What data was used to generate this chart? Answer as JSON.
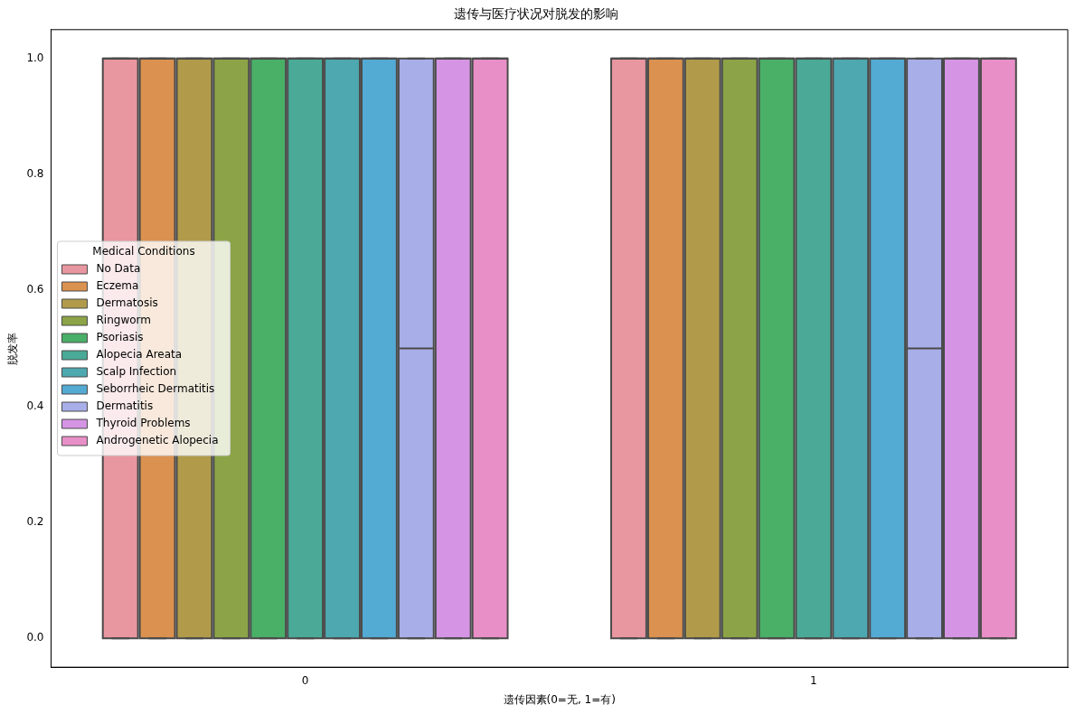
{
  "chart_data": {
    "type": "box",
    "title": "遗传与医疗状况对脱发的影响",
    "xlabel": "遗传因素(0=无, 1=有)",
    "ylabel": "脱发率",
    "legend_title": "Medical Conditions",
    "legend": "center left",
    "categories": [
      "0",
      "1"
    ],
    "ylim": [
      -0.05,
      1.05
    ],
    "yticks": [
      {
        "value": 0,
        "label": "0.0"
      },
      0.2,
      0.4,
      0.6,
      0.8,
      {
        "value": 1,
        "label": "1.0"
      }
    ],
    "grid": false,
    "series": [
      {
        "name": "No Data",
        "color": "#e8969f",
        "boxes": [
          {
            "low": 0,
            "q1": 0,
            "median": 1,
            "q3": 1,
            "high": 1
          },
          {
            "low": 0,
            "q1": 0,
            "median": 1,
            "q3": 1,
            "high": 1
          }
        ]
      },
      {
        "name": "Eczema",
        "color": "#db914f",
        "boxes": [
          {
            "low": 0,
            "q1": 0,
            "median": 1,
            "q3": 1,
            "high": 1
          },
          {
            "low": 0,
            "q1": 0,
            "median": 1,
            "q3": 1,
            "high": 1
          }
        ]
      },
      {
        "name": "Dermatosis",
        "color": "#b19b4a",
        "boxes": [
          {
            "low": 0,
            "q1": 0,
            "median": 1,
            "q3": 1,
            "high": 1
          },
          {
            "low": 0,
            "q1": 0,
            "median": 1,
            "q3": 1,
            "high": 1
          }
        ]
      },
      {
        "name": "Ringworm",
        "color": "#8ca447",
        "boxes": [
          {
            "low": 0,
            "q1": 0,
            "median": 1,
            "q3": 1,
            "high": 1
          },
          {
            "low": 0,
            "q1": 0,
            "median": 1,
            "q3": 1,
            "high": 1
          }
        ]
      },
      {
        "name": "Psoriasis",
        "color": "#4aaf67",
        "boxes": [
          {
            "low": 0,
            "q1": 0,
            "median": 1,
            "q3": 1,
            "high": 1
          },
          {
            "low": 0,
            "q1": 0,
            "median": 1,
            "q3": 1,
            "high": 1
          }
        ]
      },
      {
        "name": "Alopecia Areata",
        "color": "#4aaa97",
        "boxes": [
          {
            "low": 0,
            "q1": 0,
            "median": 1,
            "q3": 1,
            "high": 1
          },
          {
            "low": 0,
            "q1": 0,
            "median": 1,
            "q3": 1,
            "high": 1
          }
        ]
      },
      {
        "name": "Scalp Infection",
        "color": "#4ea8b0",
        "boxes": [
          {
            "low": 0,
            "q1": 0,
            "median": 1,
            "q3": 1,
            "high": 1
          },
          {
            "low": 0,
            "q1": 0,
            "median": 1,
            "q3": 1,
            "high": 1
          }
        ]
      },
      {
        "name": "Seborrheic Dermatitis",
        "color": "#53aad3",
        "boxes": [
          {
            "low": 0,
            "q1": 0,
            "median": 1,
            "q3": 1,
            "high": 1
          },
          {
            "low": 0,
            "q1": 0,
            "median": 1,
            "q3": 1,
            "high": 1
          }
        ]
      },
      {
        "name": "Dermatitis",
        "color": "#a8aee8",
        "boxes": [
          {
            "low": 0,
            "q1": 0,
            "median": 0.5,
            "q3": 1,
            "high": 1
          },
          {
            "low": 0,
            "q1": 0,
            "median": 0.5,
            "q3": 1,
            "high": 1
          }
        ]
      },
      {
        "name": "Thyroid Problems",
        "color": "#d594e4",
        "boxes": [
          {
            "low": 0,
            "q1": 0,
            "median": 1,
            "q3": 1,
            "high": 1
          },
          {
            "low": 0,
            "q1": 0,
            "median": 1,
            "q3": 1,
            "high": 1
          }
        ]
      },
      {
        "name": "Androgenetic Alopecia",
        "color": "#e88fc7",
        "boxes": [
          {
            "low": 0,
            "q1": 0,
            "median": 1,
            "q3": 1,
            "high": 1
          },
          {
            "low": 0,
            "q1": 0,
            "median": 1,
            "q3": 1,
            "high": 1
          }
        ]
      }
    ]
  }
}
